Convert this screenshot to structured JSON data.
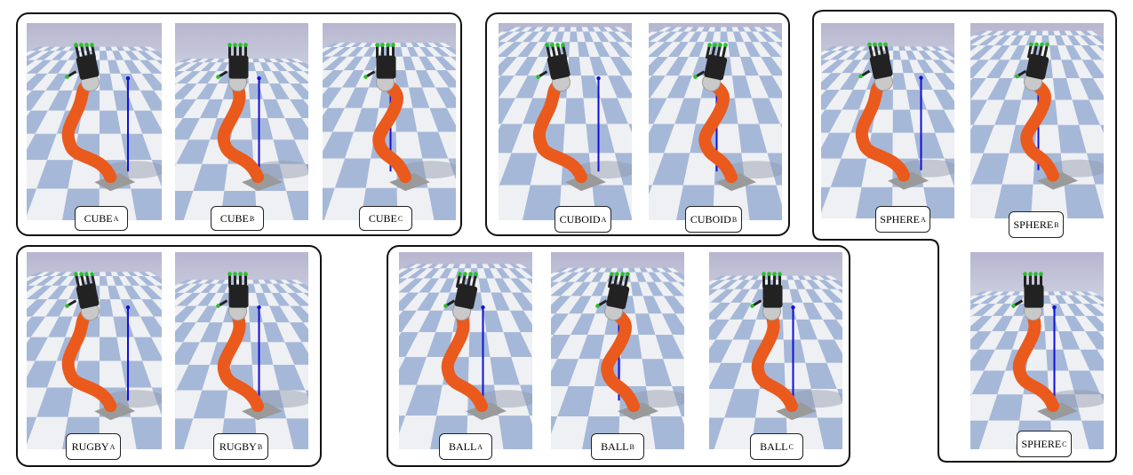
{
  "labels": {
    "cube_a": {
      "main": "CUBE",
      "sub": "A"
    },
    "cube_b": {
      "main": "CUBE",
      "sub": "B"
    },
    "cube_c": {
      "main": "CUBE",
      "sub": "C"
    },
    "cuboid_a": {
      "main": "CUBOID",
      "sub": "A"
    },
    "cuboid_b": {
      "main": "CUBOID",
      "sub": "B"
    },
    "sphere_a": {
      "main": "SPHERE",
      "sub": "A"
    },
    "sphere_b": {
      "main": "SPHERE",
      "sub": "B"
    },
    "sphere_c": {
      "main": "SPHERE",
      "sub": "C"
    },
    "rugby_a": {
      "main": "RUGBY",
      "sub": "A"
    },
    "rugby_b": {
      "main": "RUGBY",
      "sub": "B"
    },
    "ball_a": {
      "main": "BALL",
      "sub": "A"
    },
    "ball_b": {
      "main": "BALL",
      "sub": "B"
    },
    "ball_c": {
      "main": "BALL",
      "sub": "C"
    }
  },
  "colors": {
    "floor_blue": "#a6b8d8",
    "floor_white": "#eff0f3",
    "robot_orange": "#ea5a1c",
    "robot_joint": "#c9c9c9",
    "hand_black": "#222222",
    "fingertip_green": "#27c127",
    "target_line": "#1010d8"
  }
}
